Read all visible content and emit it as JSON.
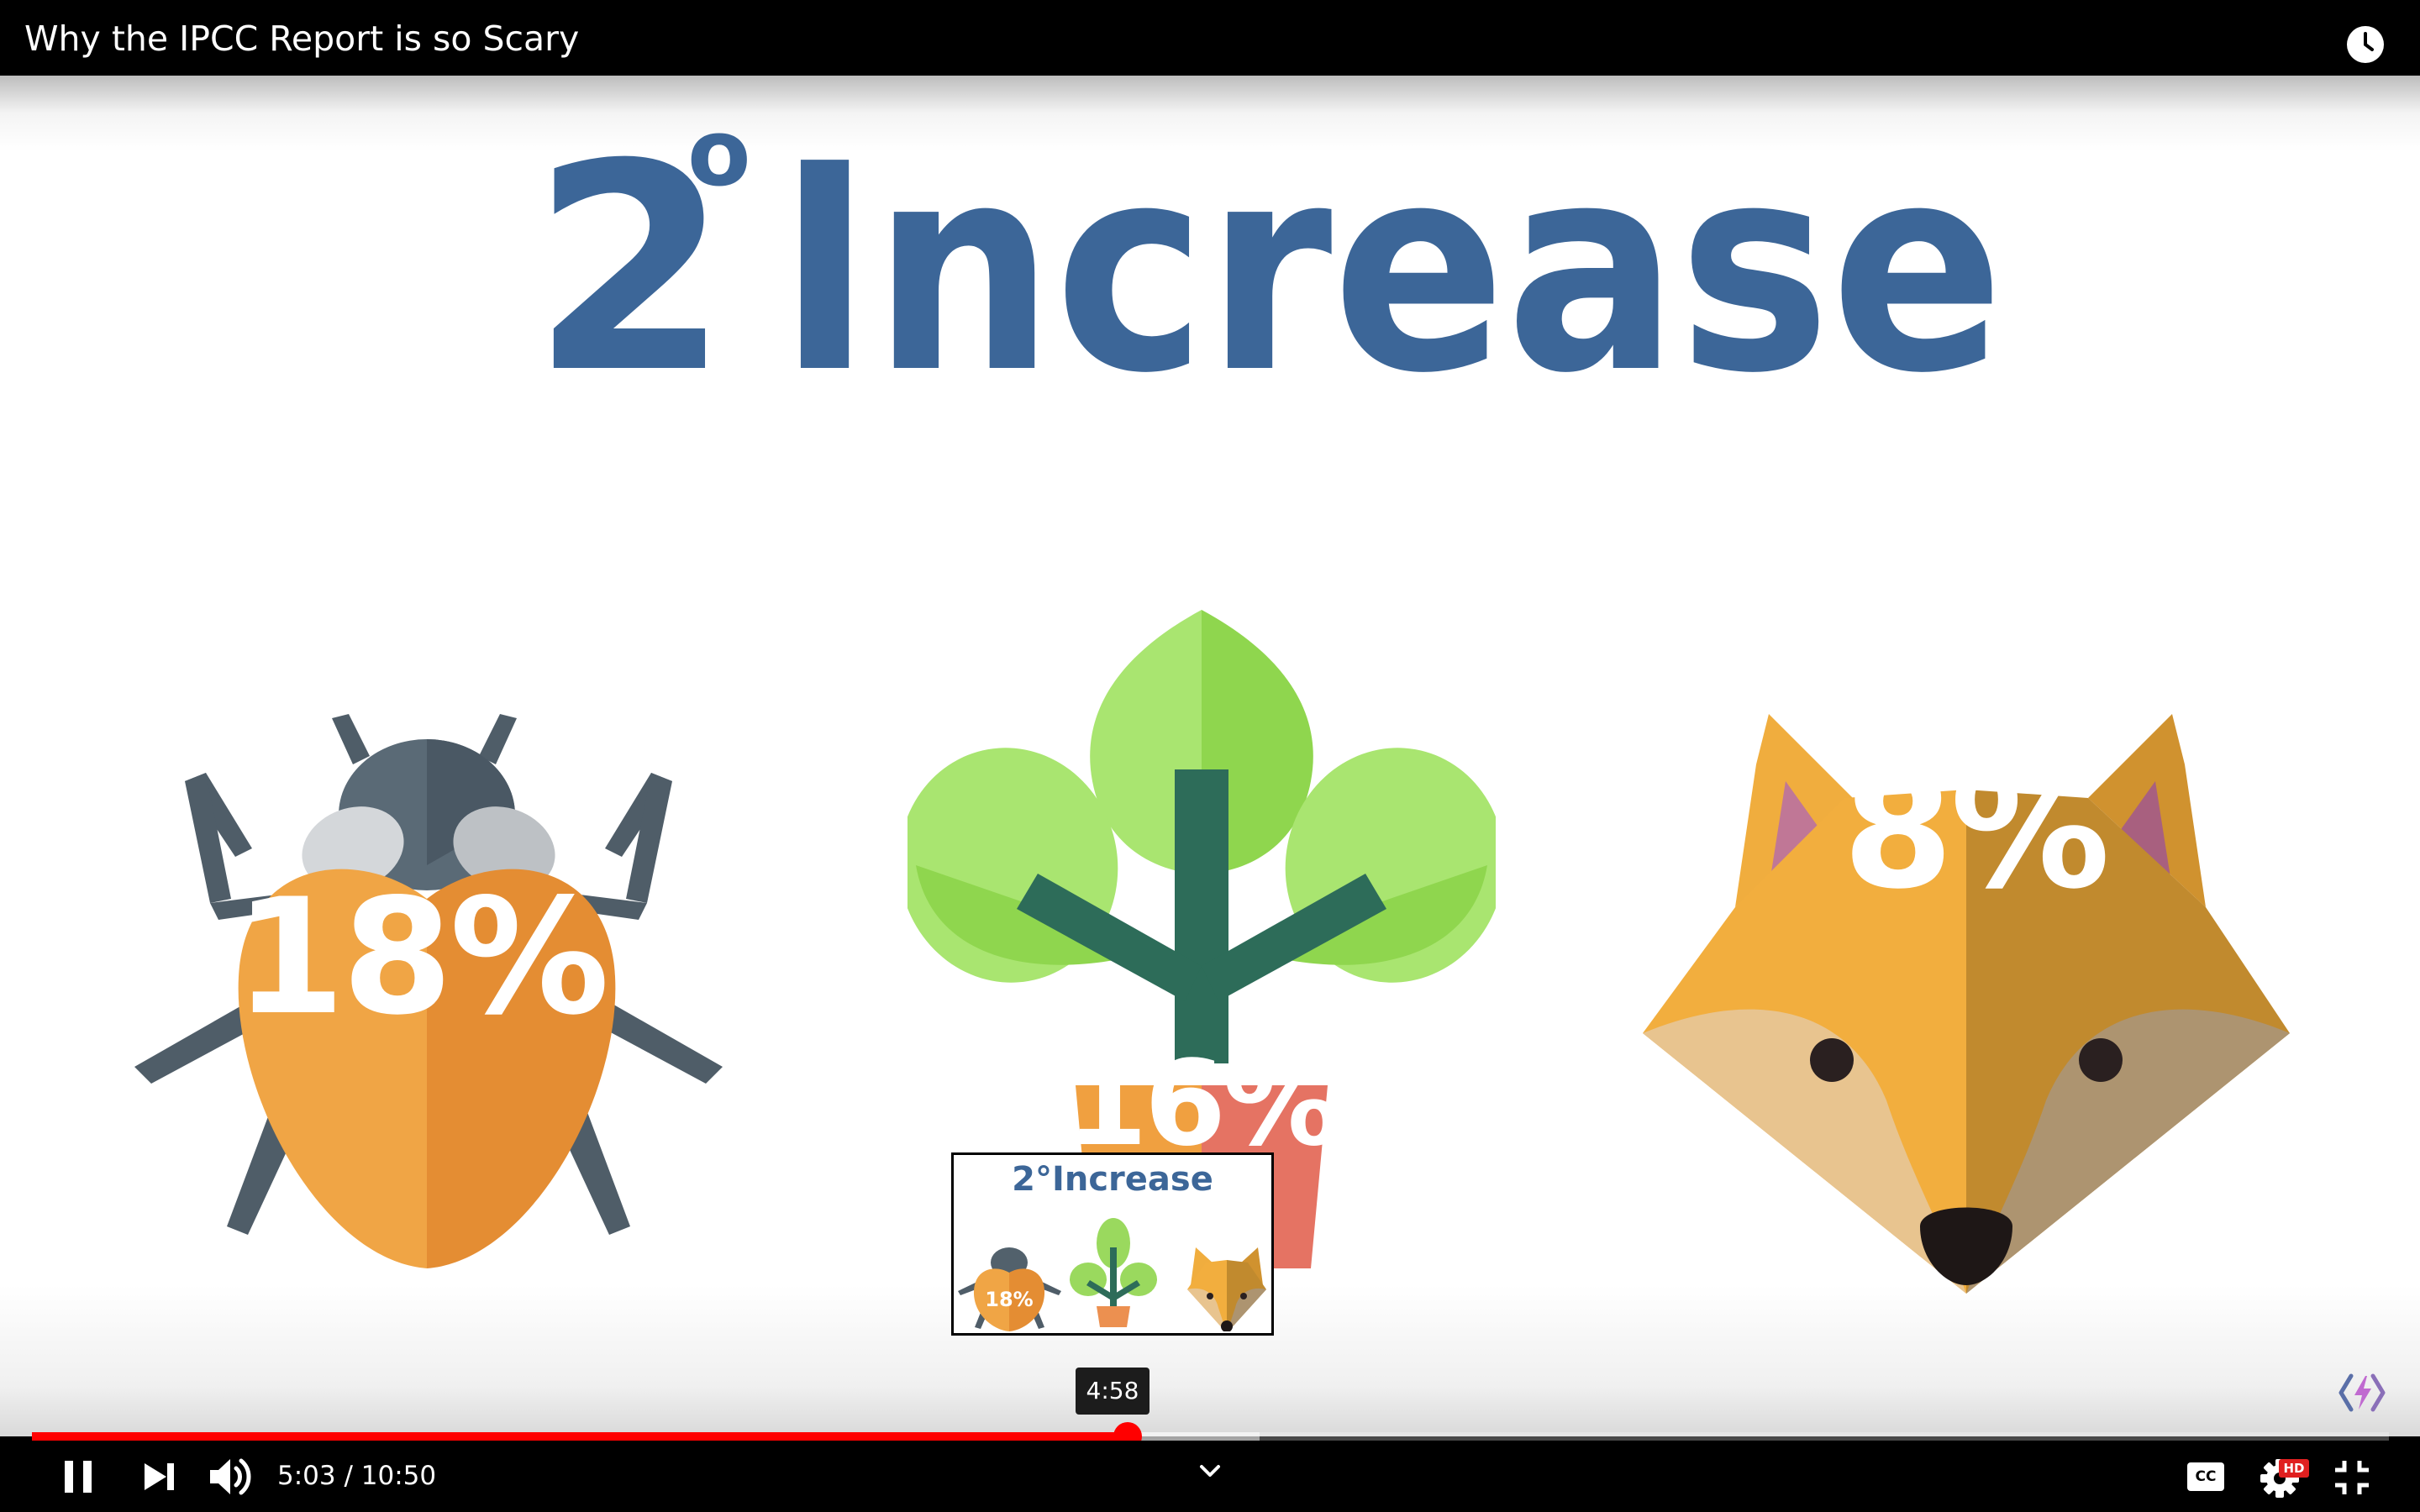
{
  "player": {
    "title": "Why the IPCC Report is so Scary",
    "current_time": "5:03",
    "duration": "10:50",
    "time_display": "5:03 / 10:50",
    "progress_fraction": 0.465,
    "buffered_fraction": 0.521,
    "hover_preview_time": "4:58",
    "hd_badge": "HD",
    "cc_label": "CC",
    "accent_color": "#ff0000"
  },
  "slide": {
    "heading_number": "2",
    "heading_degree": "o",
    "heading_word": "Increase",
    "heading_color": "#3c6698",
    "items": [
      {
        "name": "insects",
        "percent": "18%"
      },
      {
        "name": "plants",
        "percent": "16%"
      },
      {
        "name": "vertebrates",
        "percent": "8%"
      }
    ]
  },
  "preview": {
    "heading": "2°Increase",
    "percent": "18%"
  },
  "icons": {
    "watch_later": "clock-icon",
    "pause": "pause-icon",
    "next": "next-icon",
    "volume": "volume-icon",
    "chevron": "chevron-down-icon",
    "subtitles": "subtitles-icon",
    "settings": "gear-icon",
    "exit_fullscreen": "exit-fullscreen-icon",
    "extension": "extension-icon"
  }
}
